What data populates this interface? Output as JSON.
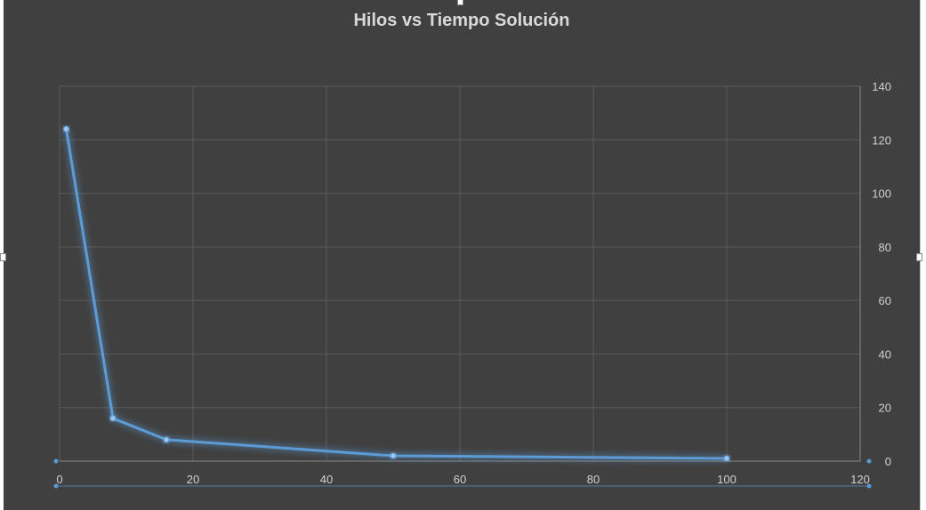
{
  "chart_data": {
    "type": "scatter",
    "title": "Hilos vs Tiempo Solución",
    "xlabel": "",
    "ylabel": "",
    "xlim": [
      0,
      120
    ],
    "ylim": [
      0,
      140
    ],
    "x_ticks": [
      0,
      20,
      40,
      60,
      80,
      100,
      120
    ],
    "y_ticks": [
      0,
      20,
      40,
      60,
      80,
      100,
      120,
      140
    ],
    "y_axis_position": "right",
    "grid": true,
    "legend": "none",
    "line_color": "#5b9bd5",
    "series": [
      {
        "x": [
          1,
          8,
          16,
          50,
          100
        ],
        "y": [
          124,
          16,
          8,
          2,
          1
        ]
      }
    ]
  }
}
